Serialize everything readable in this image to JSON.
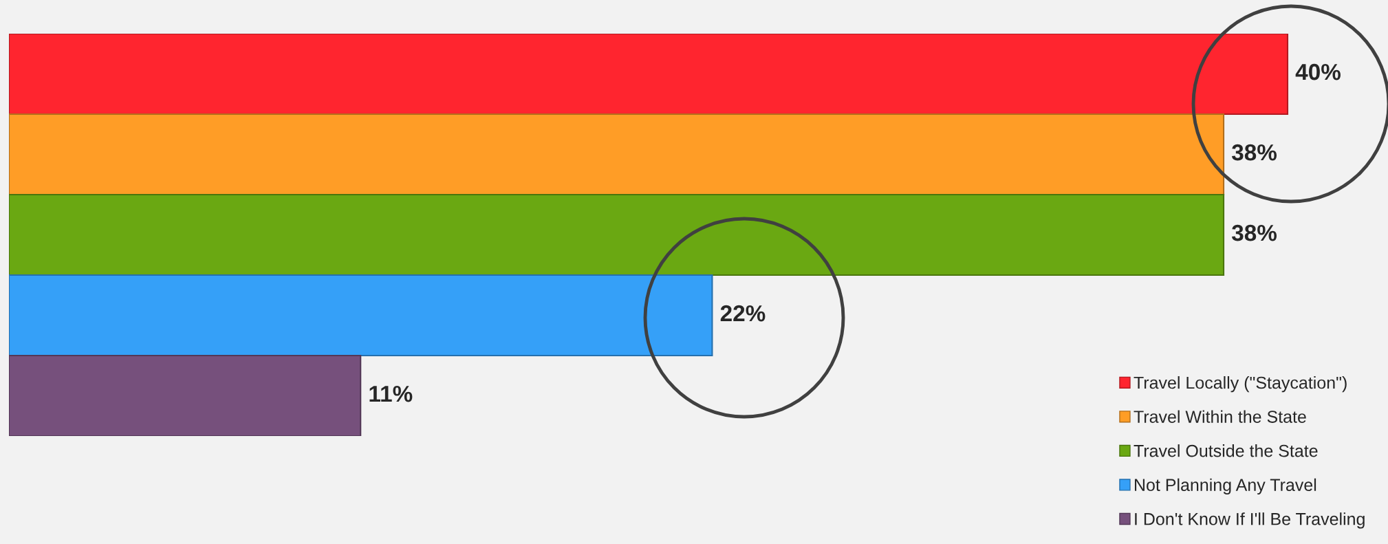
{
  "chart_data": {
    "type": "bar",
    "orientation": "horizontal",
    "stacked": true,
    "categories": [
      null,
      null,
      null,
      null,
      null
    ],
    "series": [
      {
        "name": "Travel Locally (\"Staycation\")",
        "color": "#ff252f",
        "values": [
          40,
          null,
          null,
          null,
          null
        ],
        "value_labels": [
          "40%",
          null,
          null,
          null,
          null
        ]
      },
      {
        "name": "Travel Within the State",
        "color": "#ff9d26",
        "values": [
          null,
          38,
          null,
          null,
          null
        ],
        "value_labels": [
          null,
          "38%",
          null,
          null,
          null
        ]
      },
      {
        "name": "Travel Outside the State",
        "color": "#6aa812",
        "values": [
          null,
          null,
          38,
          null,
          null
        ],
        "value_labels": [
          null,
          null,
          "38%",
          null,
          null
        ]
      },
      {
        "name": "Not Planning Any Travel",
        "color": "#35a0f8",
        "values": [
          null,
          null,
          null,
          22,
          null
        ],
        "value_labels": [
          null,
          null,
          null,
          "22%",
          null
        ]
      },
      {
        "name": "I Don't Know If I'll Be Traveling",
        "color": "#76507c",
        "values": [
          null,
          null,
          null,
          null,
          11
        ],
        "value_labels": [
          null,
          null,
          null,
          null,
          "11%"
        ]
      }
    ],
    "legend": "bottom right"
  }
}
